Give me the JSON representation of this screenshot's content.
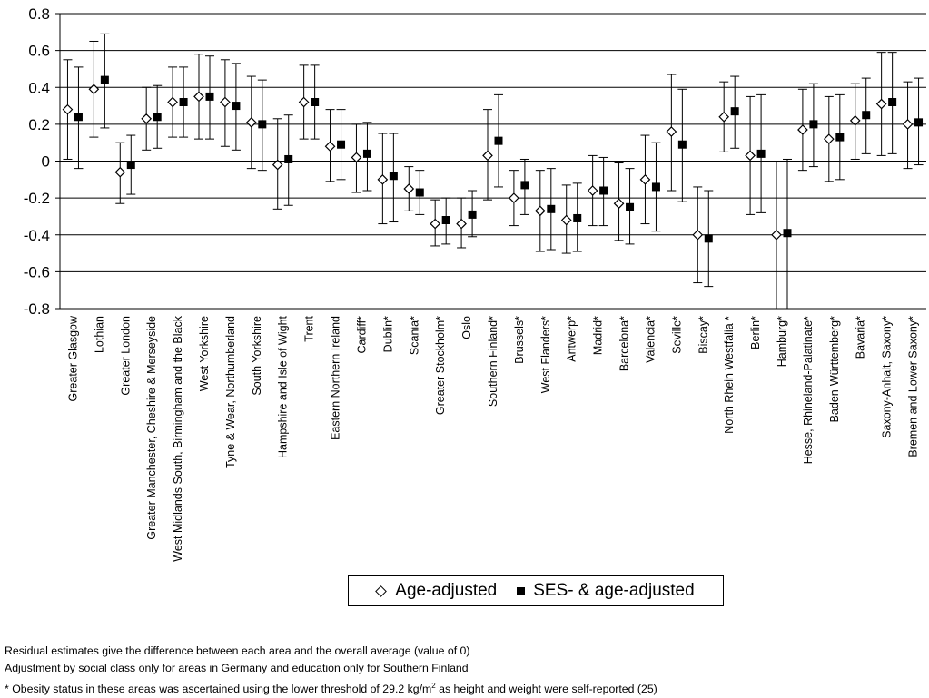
{
  "chart_data": {
    "type": "scatter",
    "subtype": "point estimates with 95% confidence intervals",
    "ylim": [
      -0.8,
      0.8
    ],
    "yticks": [
      "0.8",
      "0.6",
      "0.4",
      "0.2",
      "0",
      "-0.2",
      "-0.4",
      "-0.6",
      "-0.8"
    ],
    "ytick_values": [
      0.8,
      0.6,
      0.4,
      0.2,
      0,
      -0.2,
      -0.4,
      -0.6,
      -0.8
    ],
    "grid": "horizontal",
    "legend_position": "bottom-center",
    "categories": [
      "Greater Glasgow",
      "Lothian",
      "Greater London",
      "Greater Manchester, Cheshire & Merseyside",
      "West Midlands South, Birmingham and the Black",
      "West Yorkshire",
      "Tyne & Wear, Northumberland",
      "South Yorkshire",
      "Hampshire and Isle of Wight",
      "Trent",
      "Eastern Northern Ireland",
      "Cardiff*",
      "Dublin*",
      "Scania*",
      "Greater Stockholm*",
      "Oslo",
      "Southern Finland*",
      "Brussels*",
      "West Flanders*",
      "Antwerp*",
      "Madrid*",
      "Barcelona*",
      "Valencia*",
      "Seville*",
      "Biscay*",
      "North Rhein Westfalia *",
      "Berlin*",
      "Hamburg*",
      "Hesse, Rhineland-Palatinate*",
      "Baden-Württemberg*",
      "Bavaria*",
      "Saxony-Anhalt, Saxony*",
      "Bremen and Lower Saxony*"
    ],
    "series": [
      {
        "name": "Age-adjusted",
        "marker": "open-diamond",
        "values": [
          0.28,
          0.39,
          -0.06,
          0.23,
          0.32,
          0.35,
          0.32,
          0.21,
          -0.02,
          0.32,
          0.08,
          0.02,
          -0.1,
          -0.15,
          -0.34,
          -0.34,
          0.03,
          -0.2,
          -0.27,
          -0.32,
          -0.16,
          -0.23,
          -0.1,
          0.16,
          -0.4,
          0.24,
          0.03,
          -0.4,
          0.17,
          0.12,
          0.22,
          0.31,
          0.2
        ],
        "lower": [
          0.01,
          0.13,
          -0.23,
          0.06,
          0.13,
          0.12,
          0.08,
          -0.04,
          -0.26,
          0.12,
          -0.11,
          -0.17,
          -0.34,
          -0.27,
          -0.46,
          -0.47,
          -0.21,
          -0.35,
          -0.49,
          -0.5,
          -0.35,
          -0.43,
          -0.34,
          -0.16,
          -0.66,
          0.05,
          -0.29,
          -0.8,
          -0.05,
          -0.11,
          0.01,
          0.03,
          -0.04
        ],
        "upper": [
          0.55,
          0.65,
          0.1,
          0.4,
          0.51,
          0.58,
          0.55,
          0.46,
          0.23,
          0.52,
          0.28,
          0.2,
          0.15,
          -0.03,
          -0.21,
          -0.2,
          0.28,
          -0.05,
          -0.05,
          -0.13,
          0.03,
          -0.01,
          0.14,
          0.47,
          -0.14,
          0.43,
          0.35,
          0.0,
          0.39,
          0.35,
          0.42,
          0.59,
          0.43
        ]
      },
      {
        "name": "SES- & age-adjusted",
        "marker": "filled-square",
        "values": [
          0.24,
          0.44,
          -0.02,
          0.24,
          0.32,
          0.35,
          0.3,
          0.2,
          0.01,
          0.32,
          0.09,
          0.04,
          -0.08,
          -0.17,
          -0.32,
          -0.29,
          0.11,
          -0.13,
          -0.26,
          -0.31,
          -0.16,
          -0.25,
          -0.14,
          0.09,
          -0.42,
          0.27,
          0.04,
          -0.39,
          0.2,
          0.13,
          0.25,
          0.32,
          0.21
        ],
        "lower": [
          -0.04,
          0.18,
          -0.18,
          0.07,
          0.13,
          0.12,
          0.06,
          -0.05,
          -0.24,
          0.12,
          -0.1,
          -0.16,
          -0.33,
          -0.29,
          -0.45,
          -0.41,
          -0.14,
          -0.29,
          -0.48,
          -0.49,
          -0.35,
          -0.45,
          -0.38,
          -0.22,
          -0.68,
          0.07,
          -0.28,
          -0.8,
          -0.03,
          -0.1,
          0.04,
          0.04,
          -0.02
        ],
        "upper": [
          0.51,
          0.69,
          0.14,
          0.41,
          0.51,
          0.57,
          0.53,
          0.44,
          0.25,
          0.52,
          0.28,
          0.21,
          0.15,
          -0.05,
          -0.2,
          -0.16,
          0.36,
          0.01,
          -0.04,
          -0.12,
          0.02,
          -0.04,
          0.1,
          0.39,
          -0.16,
          0.46,
          0.36,
          0.01,
          0.42,
          0.36,
          0.45,
          0.59,
          0.45
        ]
      }
    ]
  },
  "legend": {
    "age_adjusted": "Age-adjusted",
    "ses_age_adjusted": "SES- & age-adjusted"
  },
  "notes": {
    "line1": "Residual estimates give the difference between each area and the overall average (value of 0)",
    "line2": "Adjustment by social class only for areas in Germany and education only for Southern Finland",
    "line3_before_sup": "* Obesity status in these areas was ascertained using the lower threshold of 29.2 kg/m",
    "line3_sup": "2",
    "line3_after_sup": " as height and weight were self-reported (25)"
  }
}
